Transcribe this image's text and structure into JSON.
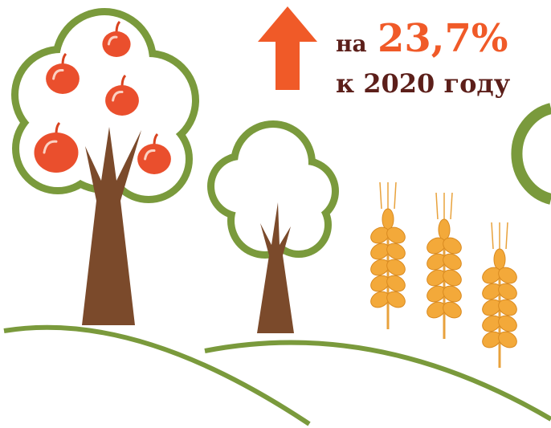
{
  "headline": {
    "prefix": "на",
    "value": "23,7%",
    "suffix": "к 2020 году"
  }
}
